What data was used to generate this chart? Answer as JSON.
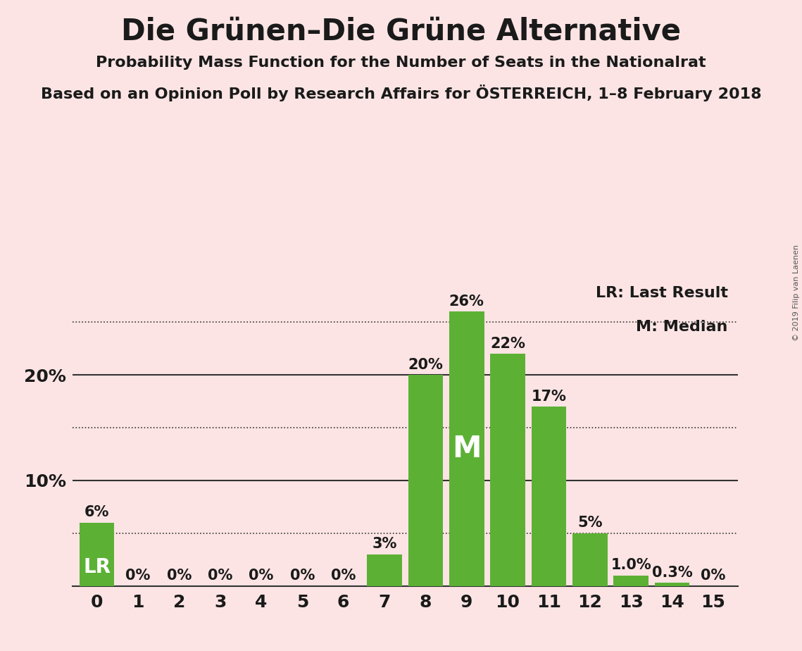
{
  "title": "Die Grünen–Die Grüne Alternative",
  "subtitle1": "Probability Mass Function for the Number of Seats in the Nationalrat",
  "subtitle2": "Based on an Opinion Poll by Research Affairs for ÖSTERREICH, 1–8 February 2018",
  "copyright": "© 2019 Filip van Laenen",
  "categories": [
    0,
    1,
    2,
    3,
    4,
    5,
    6,
    7,
    8,
    9,
    10,
    11,
    12,
    13,
    14,
    15
  ],
  "values": [
    6,
    0,
    0,
    0,
    0,
    0,
    0,
    3,
    20,
    26,
    22,
    17,
    5,
    1.0,
    0.3,
    0
  ],
  "labels": [
    "6%",
    "0%",
    "0%",
    "0%",
    "0%",
    "0%",
    "0%",
    "3%",
    "20%",
    "26%",
    "22%",
    "17%",
    "5%",
    "1.0%",
    "0.3%",
    "0%"
  ],
  "bar_color": "#5cb135",
  "background_color": "#fce4e4",
  "label_color_inside": "#ffffff",
  "label_color_outside": "#1a1a1a",
  "lr_bar": 0,
  "median_bar": 9,
  "lr_label": "LR",
  "median_label": "M",
  "legend_lr": "LR: Last Result",
  "legend_m": "M: Median",
  "ymax": 29,
  "title_fontsize": 30,
  "subtitle_fontsize": 16,
  "axis_fontsize": 18,
  "label_fontsize": 15
}
